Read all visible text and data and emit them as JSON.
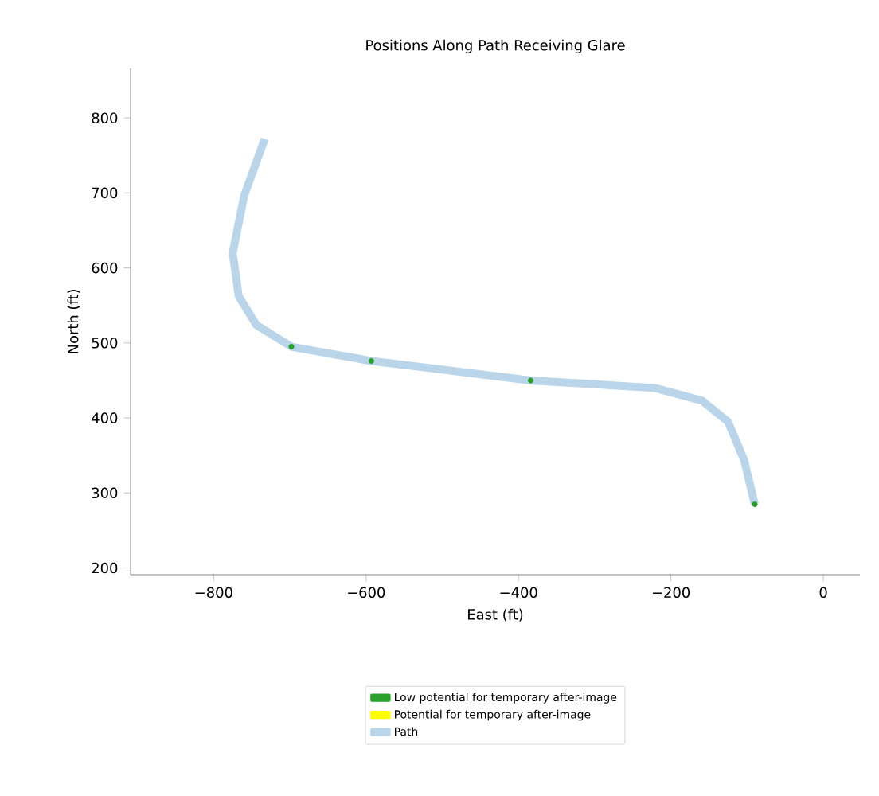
{
  "chart_data": {
    "type": "line",
    "title": "Positions Along Path Receiving Glare",
    "xlabel": "East (ft)",
    "ylabel": "North (ft)",
    "series": [
      {
        "name": "Low potential for temporary after-image",
        "type": "scatter",
        "color": "#2ca02c",
        "x": [
          -698,
          -593,
          -384,
          -90
        ],
        "values": [
          495,
          476,
          450,
          285
        ]
      },
      {
        "name": "Potential for temporary after-image",
        "type": "scatter",
        "color": "#ffff00"
      },
      {
        "name": "Path",
        "color": "#bad5ea",
        "x": [
          -733,
          -760,
          -775,
          -767,
          -744,
          -698,
          -593,
          -384,
          -221,
          -159,
          -125,
          -104,
          -90
        ],
        "values": [
          772,
          696,
          620,
          562,
          524,
          495,
          476,
          450,
          440,
          423,
          395,
          344,
          285
        ]
      }
    ],
    "xlim": [
      -909,
      48
    ],
    "ylim": [
      191,
      866
    ],
    "xticks": [
      {
        "value": -800,
        "label": "−800"
      },
      {
        "value": -600,
        "label": "−600"
      },
      {
        "value": -400,
        "label": "−400"
      },
      {
        "value": -200,
        "label": "−200"
      },
      0
    ],
    "yticks": [
      200,
      300,
      400,
      500,
      600,
      700,
      800
    ],
    "legend": "bottom",
    "grid": false
  }
}
